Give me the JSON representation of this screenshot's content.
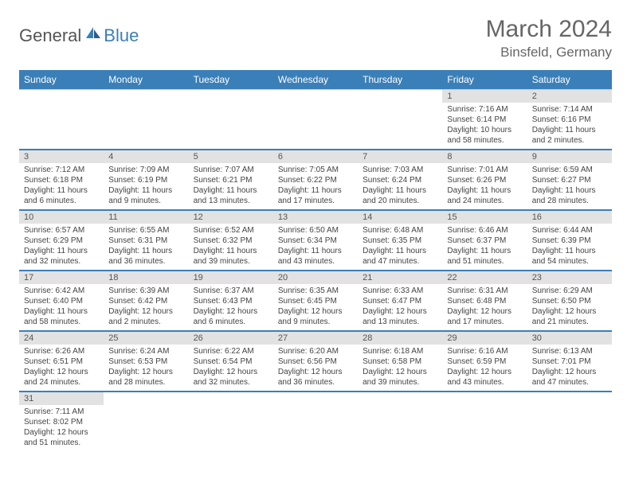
{
  "brand": {
    "part1": "General",
    "part2": "Blue"
  },
  "title": "March 2024",
  "location": "Binsfeld, Germany",
  "colors": {
    "header_bg": "#3b7fb8",
    "daynum_bg": "#e2e2e2",
    "text": "#444444",
    "title_text": "#666666"
  },
  "weekdays": [
    "Sunday",
    "Monday",
    "Tuesday",
    "Wednesday",
    "Thursday",
    "Friday",
    "Saturday"
  ],
  "weeks": [
    [
      null,
      null,
      null,
      null,
      null,
      {
        "n": "1",
        "sr": "Sunrise: 7:16 AM",
        "ss": "Sunset: 6:14 PM",
        "dl": "Daylight: 10 hours and 58 minutes."
      },
      {
        "n": "2",
        "sr": "Sunrise: 7:14 AM",
        "ss": "Sunset: 6:16 PM",
        "dl": "Daylight: 11 hours and 2 minutes."
      }
    ],
    [
      {
        "n": "3",
        "sr": "Sunrise: 7:12 AM",
        "ss": "Sunset: 6:18 PM",
        "dl": "Daylight: 11 hours and 6 minutes."
      },
      {
        "n": "4",
        "sr": "Sunrise: 7:09 AM",
        "ss": "Sunset: 6:19 PM",
        "dl": "Daylight: 11 hours and 9 minutes."
      },
      {
        "n": "5",
        "sr": "Sunrise: 7:07 AM",
        "ss": "Sunset: 6:21 PM",
        "dl": "Daylight: 11 hours and 13 minutes."
      },
      {
        "n": "6",
        "sr": "Sunrise: 7:05 AM",
        "ss": "Sunset: 6:22 PM",
        "dl": "Daylight: 11 hours and 17 minutes."
      },
      {
        "n": "7",
        "sr": "Sunrise: 7:03 AM",
        "ss": "Sunset: 6:24 PM",
        "dl": "Daylight: 11 hours and 20 minutes."
      },
      {
        "n": "8",
        "sr": "Sunrise: 7:01 AM",
        "ss": "Sunset: 6:26 PM",
        "dl": "Daylight: 11 hours and 24 minutes."
      },
      {
        "n": "9",
        "sr": "Sunrise: 6:59 AM",
        "ss": "Sunset: 6:27 PM",
        "dl": "Daylight: 11 hours and 28 minutes."
      }
    ],
    [
      {
        "n": "10",
        "sr": "Sunrise: 6:57 AM",
        "ss": "Sunset: 6:29 PM",
        "dl": "Daylight: 11 hours and 32 minutes."
      },
      {
        "n": "11",
        "sr": "Sunrise: 6:55 AM",
        "ss": "Sunset: 6:31 PM",
        "dl": "Daylight: 11 hours and 36 minutes."
      },
      {
        "n": "12",
        "sr": "Sunrise: 6:52 AM",
        "ss": "Sunset: 6:32 PM",
        "dl": "Daylight: 11 hours and 39 minutes."
      },
      {
        "n": "13",
        "sr": "Sunrise: 6:50 AM",
        "ss": "Sunset: 6:34 PM",
        "dl": "Daylight: 11 hours and 43 minutes."
      },
      {
        "n": "14",
        "sr": "Sunrise: 6:48 AM",
        "ss": "Sunset: 6:35 PM",
        "dl": "Daylight: 11 hours and 47 minutes."
      },
      {
        "n": "15",
        "sr": "Sunrise: 6:46 AM",
        "ss": "Sunset: 6:37 PM",
        "dl": "Daylight: 11 hours and 51 minutes."
      },
      {
        "n": "16",
        "sr": "Sunrise: 6:44 AM",
        "ss": "Sunset: 6:39 PM",
        "dl": "Daylight: 11 hours and 54 minutes."
      }
    ],
    [
      {
        "n": "17",
        "sr": "Sunrise: 6:42 AM",
        "ss": "Sunset: 6:40 PM",
        "dl": "Daylight: 11 hours and 58 minutes."
      },
      {
        "n": "18",
        "sr": "Sunrise: 6:39 AM",
        "ss": "Sunset: 6:42 PM",
        "dl": "Daylight: 12 hours and 2 minutes."
      },
      {
        "n": "19",
        "sr": "Sunrise: 6:37 AM",
        "ss": "Sunset: 6:43 PM",
        "dl": "Daylight: 12 hours and 6 minutes."
      },
      {
        "n": "20",
        "sr": "Sunrise: 6:35 AM",
        "ss": "Sunset: 6:45 PM",
        "dl": "Daylight: 12 hours and 9 minutes."
      },
      {
        "n": "21",
        "sr": "Sunrise: 6:33 AM",
        "ss": "Sunset: 6:47 PM",
        "dl": "Daylight: 12 hours and 13 minutes."
      },
      {
        "n": "22",
        "sr": "Sunrise: 6:31 AM",
        "ss": "Sunset: 6:48 PM",
        "dl": "Daylight: 12 hours and 17 minutes."
      },
      {
        "n": "23",
        "sr": "Sunrise: 6:29 AM",
        "ss": "Sunset: 6:50 PM",
        "dl": "Daylight: 12 hours and 21 minutes."
      }
    ],
    [
      {
        "n": "24",
        "sr": "Sunrise: 6:26 AM",
        "ss": "Sunset: 6:51 PM",
        "dl": "Daylight: 12 hours and 24 minutes."
      },
      {
        "n": "25",
        "sr": "Sunrise: 6:24 AM",
        "ss": "Sunset: 6:53 PM",
        "dl": "Daylight: 12 hours and 28 minutes."
      },
      {
        "n": "26",
        "sr": "Sunrise: 6:22 AM",
        "ss": "Sunset: 6:54 PM",
        "dl": "Daylight: 12 hours and 32 minutes."
      },
      {
        "n": "27",
        "sr": "Sunrise: 6:20 AM",
        "ss": "Sunset: 6:56 PM",
        "dl": "Daylight: 12 hours and 36 minutes."
      },
      {
        "n": "28",
        "sr": "Sunrise: 6:18 AM",
        "ss": "Sunset: 6:58 PM",
        "dl": "Daylight: 12 hours and 39 minutes."
      },
      {
        "n": "29",
        "sr": "Sunrise: 6:16 AM",
        "ss": "Sunset: 6:59 PM",
        "dl": "Daylight: 12 hours and 43 minutes."
      },
      {
        "n": "30",
        "sr": "Sunrise: 6:13 AM",
        "ss": "Sunset: 7:01 PM",
        "dl": "Daylight: 12 hours and 47 minutes."
      }
    ],
    [
      {
        "n": "31",
        "sr": "Sunrise: 7:11 AM",
        "ss": "Sunset: 8:02 PM",
        "dl": "Daylight: 12 hours and 51 minutes."
      },
      null,
      null,
      null,
      null,
      null,
      null
    ]
  ]
}
